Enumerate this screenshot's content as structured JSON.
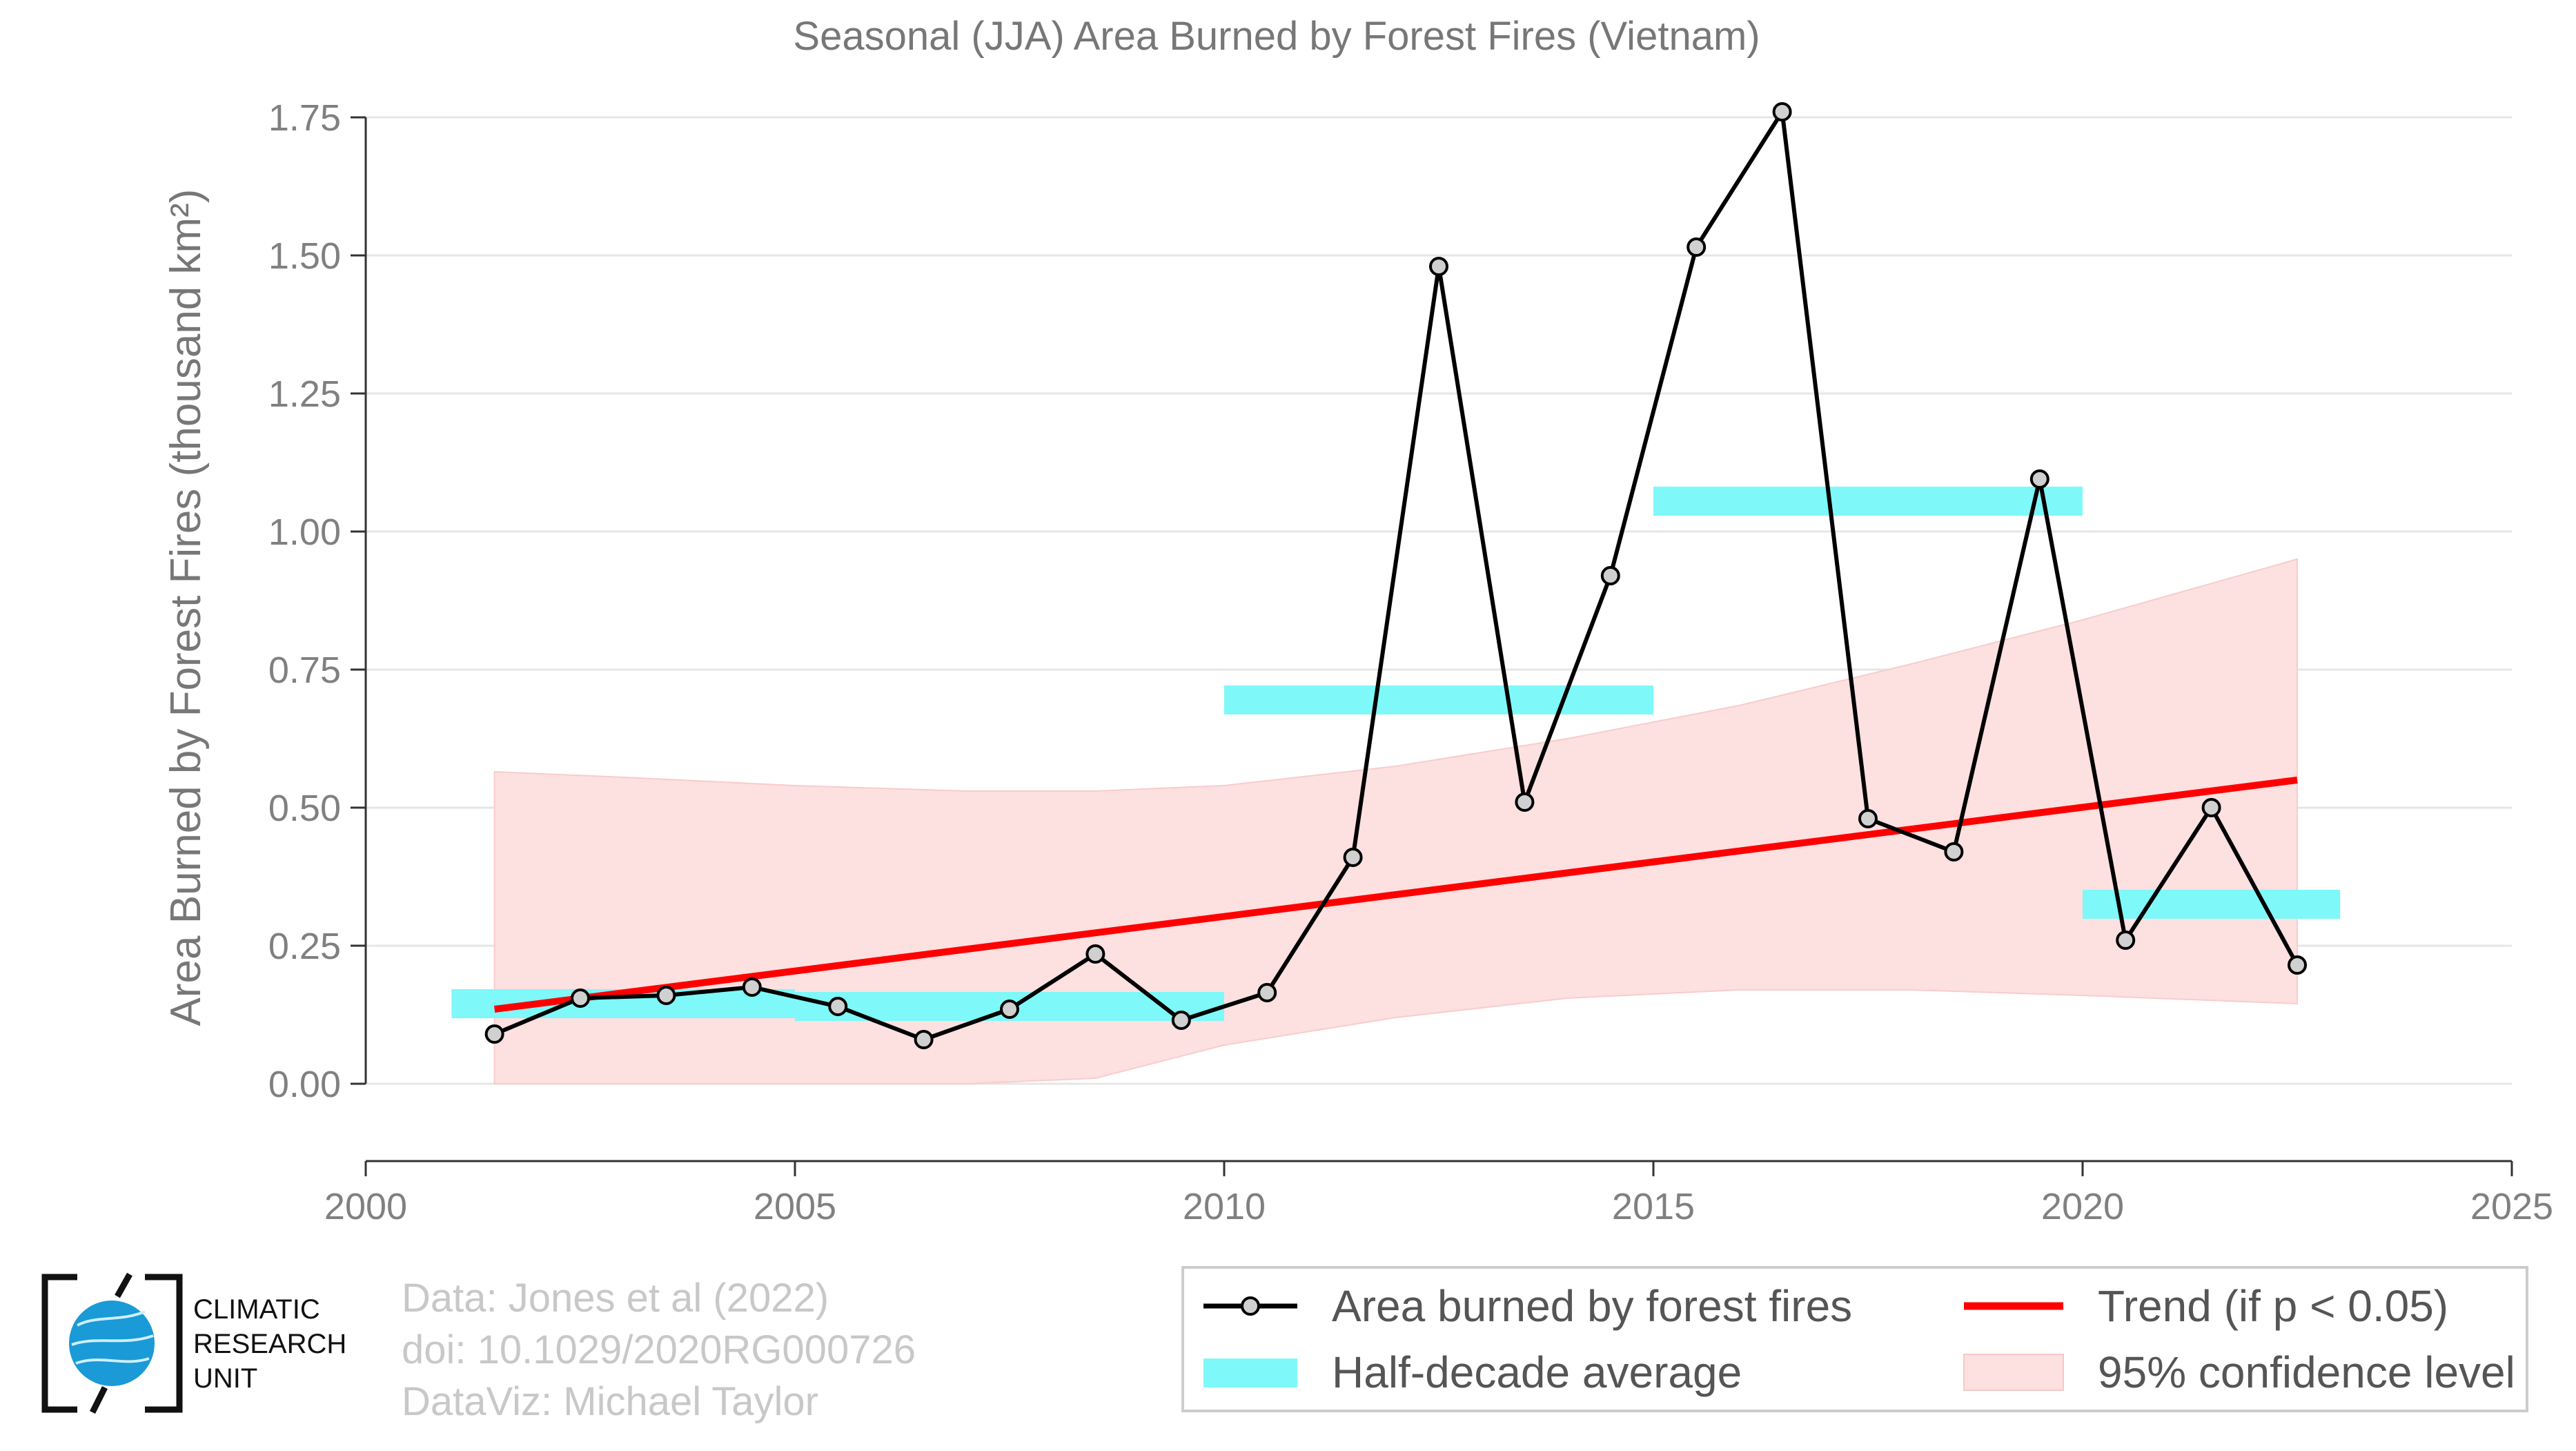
{
  "chart_data": {
    "type": "line",
    "title": "Seasonal (JJA) Area Burned by Forest Fires (Vietnam)",
    "ylabel": "Area Burned by Forest Fires (thousand km²)",
    "xlabel": "",
    "xlim": [
      2000,
      2025
    ],
    "ylim": [
      -0.14,
      1.75
    ],
    "x_ticks": [
      2000,
      2005,
      2010,
      2015,
      2020,
      2025
    ],
    "y_ticks": [
      0.0,
      0.25,
      0.5,
      0.75,
      1.0,
      1.25,
      1.5,
      1.75
    ],
    "y_tick_labels": [
      "0.00",
      "0.25",
      "0.50",
      "0.75",
      "1.00",
      "1.25",
      "1.50",
      "1.75"
    ],
    "grid": true,
    "series": [
      {
        "name": "Area burned by forest fires",
        "type": "line",
        "color": "#000000",
        "x": [
          2001.5,
          2002.5,
          2003.5,
          2004.5,
          2005.5,
          2006.5,
          2007.5,
          2008.5,
          2009.5,
          2010.5,
          2011.5,
          2012.5,
          2013.5,
          2014.5,
          2015.5,
          2016.5,
          2017.5,
          2018.5,
          2019.5,
          2020.5,
          2021.5,
          2022.5
        ],
        "y": [
          0.09,
          0.155,
          0.16,
          0.175,
          0.14,
          0.08,
          0.135,
          0.235,
          0.115,
          0.165,
          0.41,
          1.48,
          0.51,
          0.92,
          1.515,
          1.76,
          0.48,
          0.42,
          1.095,
          0.26,
          0.5,
          0.215
        ]
      },
      {
        "name": "Half-decade average",
        "type": "segments",
        "color": "#7ef8f8",
        "segments": [
          {
            "x0": 2001,
            "x1": 2005,
            "y": 0.145
          },
          {
            "x0": 2005,
            "x1": 2010,
            "y": 0.14
          },
          {
            "x0": 2010,
            "x1": 2015,
            "y": 0.695
          },
          {
            "x0": 2015,
            "x1": 2020,
            "y": 1.055
          },
          {
            "x0": 2020,
            "x1": 2023,
            "y": 0.325
          }
        ]
      },
      {
        "name": "Trend (if p < 0.05)",
        "type": "line",
        "color": "#ff0000",
        "x": [
          2001.5,
          2022.5
        ],
        "y": [
          0.135,
          0.55
        ]
      },
      {
        "name": "95% confidence level",
        "type": "area",
        "color": "#fde0e0",
        "x": [
          2001.5,
          2003,
          2005,
          2007,
          2008.5,
          2010,
          2012,
          2014,
          2016,
          2018,
          2020,
          2022.5
        ],
        "upper": [
          0.565,
          0.555,
          0.54,
          0.53,
          0.53,
          0.54,
          0.575,
          0.625,
          0.685,
          0.76,
          0.84,
          0.95
        ],
        "lower": [
          0.0,
          0.0,
          0.0,
          0.0,
          0.01,
          0.07,
          0.12,
          0.155,
          0.17,
          0.17,
          0.16,
          0.145
        ]
      }
    ],
    "legend_placement": "bottom-right"
  },
  "legend": {
    "line": "Area burned by forest fires",
    "half": "Half-decade average",
    "trend": "Trend (if p < 0.05)",
    "ci": "95% confidence level"
  },
  "credits": {
    "line1": "Data: Jones et al (2022)",
    "line2": "doi: 10.1029/2020RG000726",
    "line3": "DataViz: Michael Taylor"
  },
  "logo": {
    "line1": "CLIMATIC",
    "line2": "RESEARCH",
    "line3": "UNIT",
    "icon": "globe-icon",
    "accent": "#1a9ad6"
  }
}
